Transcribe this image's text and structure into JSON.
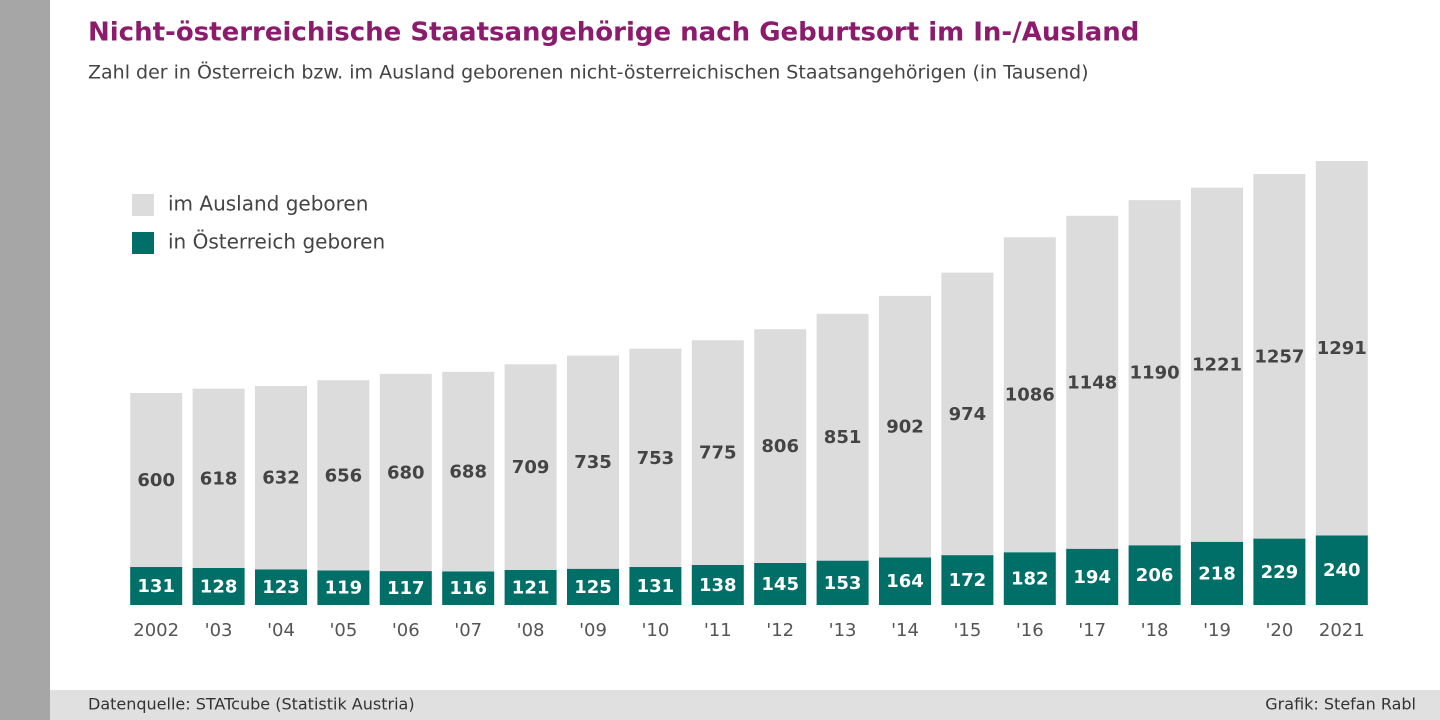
{
  "chart_data": {
    "type": "stacked-bar",
    "title": "Nicht-österreichische Staatsangehörige nach Geburtsort im In-/Ausland",
    "subtitle": "Zahl der in Österreich bzw. im Ausland geborenen nicht-österreichischen Staatsangehörigen (in Tausend)",
    "categories": [
      "2002",
      "'03",
      "'04",
      "'05",
      "'06",
      "'07",
      "'08",
      "'09",
      "'10",
      "'11",
      "'12",
      "'13",
      "'14",
      "'15",
      "'16",
      "'17",
      "'18",
      "'19",
      "'20",
      "2021"
    ],
    "series": [
      {
        "name": "im Ausland geboren",
        "color": "#dcdcdc",
        "label_color": "#444444",
        "values": [
          600,
          618,
          632,
          656,
          680,
          688,
          709,
          735,
          753,
          775,
          806,
          851,
          902,
          974,
          1086,
          1148,
          1190,
          1221,
          1257,
          1291
        ]
      },
      {
        "name": "in Österreich geboren",
        "color": "#006f68",
        "label_color": "#ffffff",
        "values": [
          131,
          128,
          123,
          119,
          117,
          116,
          121,
          125,
          131,
          138,
          145,
          153,
          164,
          172,
          182,
          194,
          206,
          218,
          229,
          240
        ]
      }
    ],
    "source": "Datenquelle: STATcube (Statistik Austria)",
    "credit": "Grafik: Stefan Rabl"
  }
}
